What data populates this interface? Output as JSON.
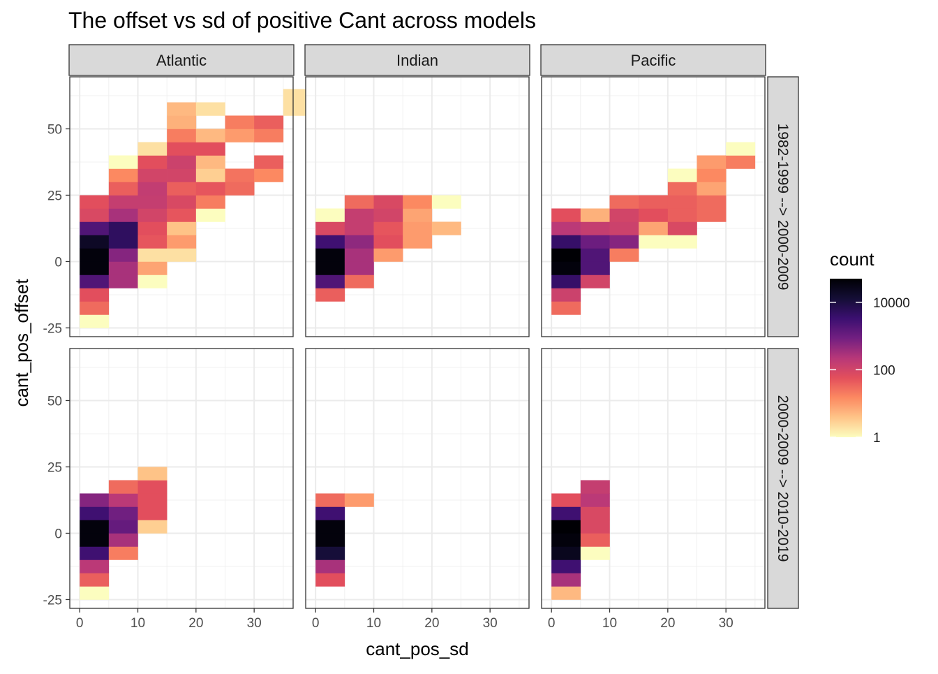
{
  "chart_data": {
    "type": "heatmap",
    "title": "The offset vs sd of positive Cant across models",
    "xlabel": "cant_pos_sd",
    "ylabel": "cant_pos_offset",
    "x_ticks": [
      0,
      10,
      20,
      30
    ],
    "y_ticks": [
      -25,
      0,
      25,
      50
    ],
    "xlim": [
      -1.7,
      36.7
    ],
    "ylim": [
      -28.3,
      69.6
    ],
    "bin_width": 5,
    "col_facets": [
      "Atlantic",
      "Indian",
      "Pacific"
    ],
    "row_facets": [
      "1982-1999 --> 2000-2009",
      "2000-2009 --> 2010-2019"
    ],
    "legend": {
      "title": "count",
      "scale": "log10",
      "domain": [
        1,
        50000
      ],
      "ticks": [
        {
          "value": 10000,
          "label": "10000"
        },
        {
          "value": 100,
          "label": "100"
        },
        {
          "value": 1,
          "label": "1"
        }
      ],
      "colors": [
        "#fcfdbf",
        "#fec488",
        "#fc8961",
        "#e34f5c",
        "#b73779",
        "#721f81",
        "#3b0f70",
        "#140e36",
        "#000004"
      ]
    },
    "panels": [
      {
        "col": "Atlantic",
        "row": "1982-1999 --> 2000-2009",
        "bins": [
          [
            0,
            -25,
            1
          ],
          [
            0,
            -20,
            30
          ],
          [
            0,
            -15,
            60
          ],
          [
            0,
            -10,
            2000
          ],
          [
            0,
            -5,
            40000
          ],
          [
            0,
            0,
            40000
          ],
          [
            0,
            5,
            20000
          ],
          [
            0,
            10,
            2000
          ],
          [
            0,
            15,
            80
          ],
          [
            0,
            20,
            60
          ],
          [
            5,
            -10,
            300
          ],
          [
            5,
            -5,
            300
          ],
          [
            5,
            0,
            600
          ],
          [
            5,
            5,
            5000
          ],
          [
            5,
            10,
            5000
          ],
          [
            5,
            15,
            300
          ],
          [
            5,
            20,
            150
          ],
          [
            5,
            25,
            40
          ],
          [
            5,
            30,
            15
          ],
          [
            5,
            35,
            1
          ],
          [
            10,
            -10,
            1
          ],
          [
            10,
            -5,
            8
          ],
          [
            10,
            0,
            2
          ],
          [
            10,
            5,
            50
          ],
          [
            10,
            10,
            60
          ],
          [
            10,
            15,
            100
          ],
          [
            10,
            20,
            150
          ],
          [
            10,
            25,
            160
          ],
          [
            10,
            30,
            100
          ],
          [
            10,
            35,
            60
          ],
          [
            10,
            40,
            2
          ],
          [
            15,
            0,
            2
          ],
          [
            15,
            5,
            10
          ],
          [
            15,
            10,
            4
          ],
          [
            15,
            15,
            50
          ],
          [
            15,
            20,
            80
          ],
          [
            15,
            25,
            40
          ],
          [
            15,
            30,
            100
          ],
          [
            15,
            35,
            120
          ],
          [
            15,
            40,
            60
          ],
          [
            15,
            45,
            20
          ],
          [
            15,
            50,
            6
          ],
          [
            15,
            55,
            5
          ],
          [
            20,
            15,
            1
          ],
          [
            20,
            20,
            20
          ],
          [
            20,
            25,
            50
          ],
          [
            20,
            30,
            3
          ],
          [
            20,
            35,
            5
          ],
          [
            20,
            40,
            60
          ],
          [
            20,
            45,
            5
          ],
          [
            20,
            55,
            2
          ],
          [
            25,
            25,
            30
          ],
          [
            25,
            30,
            25
          ],
          [
            25,
            45,
            10
          ],
          [
            25,
            50,
            20
          ],
          [
            30,
            30,
            15
          ],
          [
            30,
            35,
            40
          ],
          [
            30,
            45,
            20
          ],
          [
            30,
            50,
            40
          ],
          [
            35,
            55,
            2
          ],
          [
            35,
            60,
            2
          ]
        ]
      },
      {
        "col": "Indian",
        "row": "1982-1999 --> 2000-2009",
        "bins": [
          [
            0,
            -15,
            40
          ],
          [
            0,
            -10,
            2000
          ],
          [
            0,
            -5,
            40000
          ],
          [
            0,
            0,
            40000
          ],
          [
            0,
            5,
            3000
          ],
          [
            0,
            10,
            80
          ],
          [
            0,
            15,
            1
          ],
          [
            5,
            -10,
            30
          ],
          [
            5,
            -5,
            300
          ],
          [
            5,
            0,
            300
          ],
          [
            5,
            5,
            500
          ],
          [
            5,
            10,
            150
          ],
          [
            5,
            15,
            150
          ],
          [
            5,
            20,
            30
          ],
          [
            10,
            0,
            10
          ],
          [
            10,
            5,
            60
          ],
          [
            10,
            10,
            50
          ],
          [
            10,
            15,
            100
          ],
          [
            10,
            20,
            80
          ],
          [
            15,
            5,
            10
          ],
          [
            15,
            10,
            10
          ],
          [
            15,
            15,
            8
          ],
          [
            15,
            20,
            15
          ],
          [
            20,
            10,
            5
          ],
          [
            20,
            20,
            1
          ]
        ]
      },
      {
        "col": "Pacific",
        "row": "1982-1999 --> 2000-2009",
        "bins": [
          [
            0,
            -20,
            30
          ],
          [
            0,
            -15,
            120
          ],
          [
            0,
            -10,
            4000
          ],
          [
            0,
            -5,
            40000
          ],
          [
            0,
            0,
            60000
          ],
          [
            0,
            5,
            4000
          ],
          [
            0,
            10,
            200
          ],
          [
            0,
            15,
            60
          ],
          [
            5,
            -10,
            100
          ],
          [
            5,
            -5,
            2000
          ],
          [
            5,
            0,
            2000
          ],
          [
            5,
            5,
            1000
          ],
          [
            5,
            10,
            150
          ],
          [
            5,
            15,
            6
          ],
          [
            10,
            0,
            20
          ],
          [
            10,
            5,
            600
          ],
          [
            10,
            10,
            120
          ],
          [
            10,
            15,
            100
          ],
          [
            10,
            20,
            30
          ],
          [
            15,
            5,
            1
          ],
          [
            15,
            10,
            8
          ],
          [
            15,
            15,
            60
          ],
          [
            15,
            20,
            40
          ],
          [
            20,
            5,
            1
          ],
          [
            20,
            10,
            80
          ],
          [
            20,
            15,
            40
          ],
          [
            20,
            20,
            40
          ],
          [
            20,
            25,
            30
          ],
          [
            20,
            30,
            1
          ],
          [
            25,
            15,
            30
          ],
          [
            25,
            20,
            30
          ],
          [
            25,
            25,
            8
          ],
          [
            25,
            30,
            15
          ],
          [
            25,
            35,
            10
          ],
          [
            30,
            35,
            20
          ],
          [
            30,
            40,
            1
          ]
        ]
      },
      {
        "col": "Atlantic",
        "row": "2000-2009 --> 2010-2019",
        "bins": [
          [
            0,
            -25,
            1
          ],
          [
            0,
            -20,
            40
          ],
          [
            0,
            -15,
            200
          ],
          [
            0,
            -10,
            3000
          ],
          [
            0,
            -5,
            40000
          ],
          [
            0,
            0,
            40000
          ],
          [
            0,
            5,
            3000
          ],
          [
            0,
            10,
            600
          ],
          [
            5,
            -10,
            20
          ],
          [
            5,
            -5,
            300
          ],
          [
            5,
            0,
            1200
          ],
          [
            5,
            5,
            900
          ],
          [
            5,
            10,
            200
          ],
          [
            5,
            15,
            30
          ],
          [
            10,
            0,
            3
          ],
          [
            10,
            5,
            60
          ],
          [
            10,
            10,
            60
          ],
          [
            10,
            15,
            60
          ],
          [
            10,
            20,
            4
          ]
        ]
      },
      {
        "col": "Indian",
        "row": "2000-2009 --> 2010-2019",
        "bins": [
          [
            0,
            -20,
            60
          ],
          [
            0,
            -15,
            300
          ],
          [
            0,
            -10,
            12000
          ],
          [
            0,
            -5,
            40000
          ],
          [
            0,
            0,
            40000
          ],
          [
            0,
            5,
            3000
          ],
          [
            0,
            10,
            30
          ],
          [
            5,
            10,
            10
          ]
        ]
      },
      {
        "col": "Pacific",
        "row": "2000-2009 --> 2010-2019",
        "bins": [
          [
            0,
            -25,
            5
          ],
          [
            0,
            -20,
            300
          ],
          [
            0,
            -15,
            3000
          ],
          [
            0,
            -10,
            25000
          ],
          [
            0,
            -5,
            40000
          ],
          [
            0,
            0,
            55000
          ],
          [
            0,
            5,
            3000
          ],
          [
            0,
            10,
            60
          ],
          [
            5,
            -10,
            1
          ],
          [
            5,
            -5,
            40
          ],
          [
            5,
            0,
            80
          ],
          [
            5,
            5,
            80
          ],
          [
            5,
            10,
            200
          ],
          [
            5,
            15,
            150
          ]
        ]
      }
    ]
  }
}
